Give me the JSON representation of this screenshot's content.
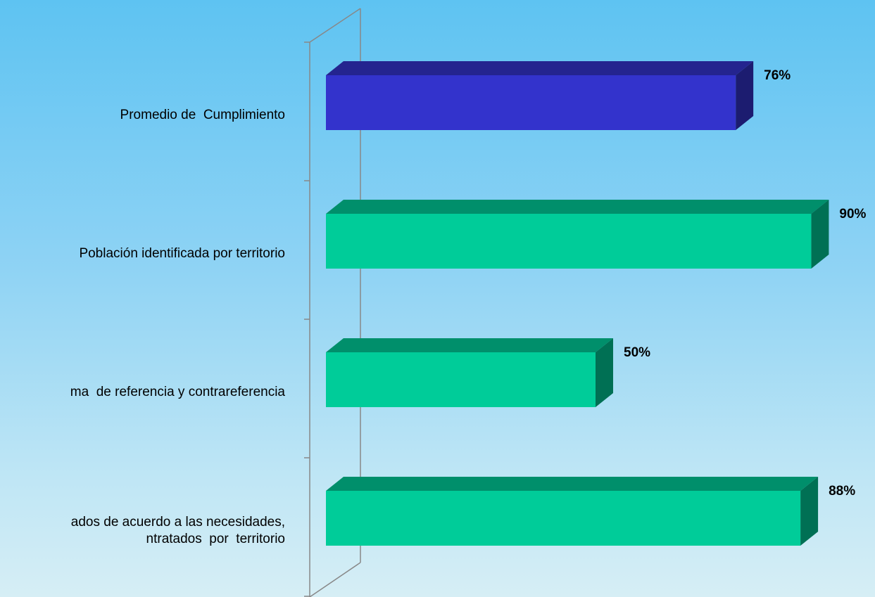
{
  "chart_data": {
    "type": "bar3d",
    "categories": [
      "Promedio de  Cumplimiento",
      "Población identificada por territorio",
      "ma  de referencia y contrareferencia",
      "ados de acuerdo a las necesidades,\nntratados  por  territorio"
    ],
    "values": [
      76,
      90,
      50,
      88
    ],
    "value_labels": [
      "76%",
      "90%",
      "50%",
      "88%"
    ],
    "colors": [
      "#3333cc",
      "#00cc99",
      "#00cc99",
      "#00cc99"
    ],
    "xlim": [
      0,
      100
    ]
  }
}
